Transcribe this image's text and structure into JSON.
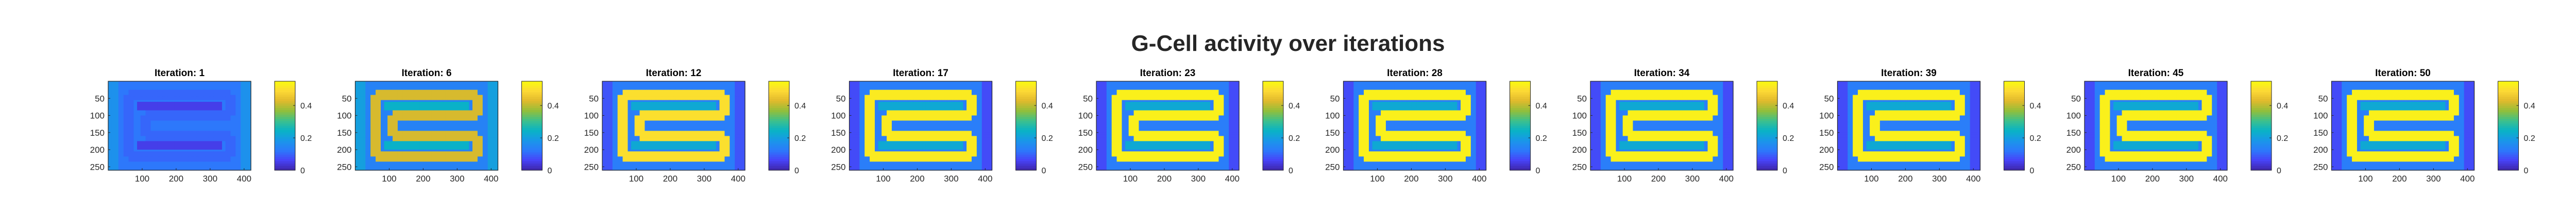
{
  "figure": {
    "title": "G-Cell activity over iterations"
  },
  "colormap": {
    "name": "parula",
    "stops": [
      "#3e26a8",
      "#4743f8",
      "#2c7afb",
      "#1997e8",
      "#09b3c5",
      "#3dc08c",
      "#92bf3a",
      "#e1b92c",
      "#fcd935",
      "#f9fb0e"
    ]
  },
  "chart_data": [
    {
      "type": "heatmap",
      "title": "Iteration: 1",
      "iteration": 1,
      "xticks": [
        100,
        200,
        300,
        400
      ],
      "yticks": [
        50,
        100,
        150,
        200,
        250
      ],
      "xlim": [
        0,
        420
      ],
      "ylim": [
        0,
        260
      ],
      "clim": [
        0,
        0.55
      ],
      "colorbar_ticks": [
        0,
        0.2,
        0.4
      ],
      "pattern": {
        "background": 0.12,
        "path": 0.1,
        "edge_band": 0.17,
        "wall": 0.05
      }
    },
    {
      "type": "heatmap",
      "title": "Iteration: 6",
      "iteration": 6,
      "xticks": [
        100,
        200,
        300,
        400
      ],
      "yticks": [
        50,
        100,
        150,
        200,
        250
      ],
      "xlim": [
        0,
        420
      ],
      "ylim": [
        0,
        260
      ],
      "clim": [
        0,
        0.55
      ],
      "colorbar_ticks": [
        0,
        0.2,
        0.4
      ],
      "pattern": {
        "background": 0.14,
        "path": 0.42,
        "edge_band": 0.2,
        "wall": 0.24
      }
    },
    {
      "type": "heatmap",
      "title": "Iteration: 12",
      "iteration": 12,
      "xticks": [
        100,
        200,
        300,
        400
      ],
      "yticks": [
        50,
        100,
        150,
        200,
        250
      ],
      "xlim": [
        0,
        420
      ],
      "ylim": [
        0,
        260
      ],
      "clim": [
        0,
        0.55
      ],
      "colorbar_ticks": [
        0,
        0.2,
        0.4
      ],
      "pattern": {
        "background": 0.13,
        "path": 0.5,
        "edge_band": 0.08,
        "wall": 0.22
      }
    },
    {
      "type": "heatmap",
      "title": "Iteration: 17",
      "iteration": 17,
      "xticks": [
        100,
        200,
        300,
        400
      ],
      "yticks": [
        50,
        100,
        150,
        200,
        250
      ],
      "xlim": [
        0,
        420
      ],
      "ylim": [
        0,
        260
      ],
      "clim": [
        0,
        0.55
      ],
      "colorbar_ticks": [
        0,
        0.2,
        0.4
      ],
      "pattern": {
        "background": 0.13,
        "path": 0.52,
        "edge_band": 0.07,
        "wall": 0.22
      }
    },
    {
      "type": "heatmap",
      "title": "Iteration: 23",
      "iteration": 23,
      "xticks": [
        100,
        200,
        300,
        400
      ],
      "yticks": [
        50,
        100,
        150,
        200,
        250
      ],
      "xlim": [
        0,
        420
      ],
      "ylim": [
        0,
        260
      ],
      "clim": [
        0,
        0.55
      ],
      "colorbar_ticks": [
        0,
        0.2,
        0.4
      ],
      "pattern": {
        "background": 0.13,
        "path": 0.53,
        "edge_band": 0.07,
        "wall": 0.22
      }
    },
    {
      "type": "heatmap",
      "title": "Iteration: 28",
      "iteration": 28,
      "xticks": [
        100,
        200,
        300,
        400
      ],
      "yticks": [
        50,
        100,
        150,
        200,
        250
      ],
      "xlim": [
        0,
        420
      ],
      "ylim": [
        0,
        260
      ],
      "clim": [
        0,
        0.55
      ],
      "colorbar_ticks": [
        0,
        0.2,
        0.4
      ],
      "pattern": {
        "background": 0.13,
        "path": 0.53,
        "edge_band": 0.07,
        "wall": 0.22
      }
    },
    {
      "type": "heatmap",
      "title": "Iteration: 34",
      "iteration": 34,
      "xticks": [
        100,
        200,
        300,
        400
      ],
      "yticks": [
        50,
        100,
        150,
        200,
        250
      ],
      "xlim": [
        0,
        420
      ],
      "ylim": [
        0,
        260
      ],
      "clim": [
        0,
        0.55
      ],
      "colorbar_ticks": [
        0,
        0.2,
        0.4
      ],
      "pattern": {
        "background": 0.13,
        "path": 0.53,
        "edge_band": 0.07,
        "wall": 0.22
      }
    },
    {
      "type": "heatmap",
      "title": "Iteration: 39",
      "iteration": 39,
      "xticks": [
        100,
        200,
        300,
        400
      ],
      "yticks": [
        50,
        100,
        150,
        200,
        250
      ],
      "xlim": [
        0,
        420
      ],
      "ylim": [
        0,
        260
      ],
      "clim": [
        0,
        0.55
      ],
      "colorbar_ticks": [
        0,
        0.2,
        0.4
      ],
      "pattern": {
        "background": 0.13,
        "path": 0.53,
        "edge_band": 0.07,
        "wall": 0.22
      }
    },
    {
      "type": "heatmap",
      "title": "Iteration: 45",
      "iteration": 45,
      "xticks": [
        100,
        200,
        300,
        400
      ],
      "yticks": [
        50,
        100,
        150,
        200,
        250
      ],
      "xlim": [
        0,
        420
      ],
      "ylim": [
        0,
        260
      ],
      "clim": [
        0,
        0.55
      ],
      "colorbar_ticks": [
        0,
        0.2,
        0.4
      ],
      "pattern": {
        "background": 0.13,
        "path": 0.53,
        "edge_band": 0.07,
        "wall": 0.22
      }
    },
    {
      "type": "heatmap",
      "title": "Iteration: 50",
      "iteration": 50,
      "xticks": [
        100,
        200,
        300,
        400
      ],
      "yticks": [
        50,
        100,
        150,
        200,
        250
      ],
      "xlim": [
        0,
        420
      ],
      "ylim": [
        0,
        260
      ],
      "clim": [
        0,
        0.55
      ],
      "colorbar_ticks": [
        0,
        0.2,
        0.4
      ],
      "pattern": {
        "background": 0.13,
        "path": 0.53,
        "edge_band": 0.07,
        "wall": 0.22
      }
    }
  ]
}
